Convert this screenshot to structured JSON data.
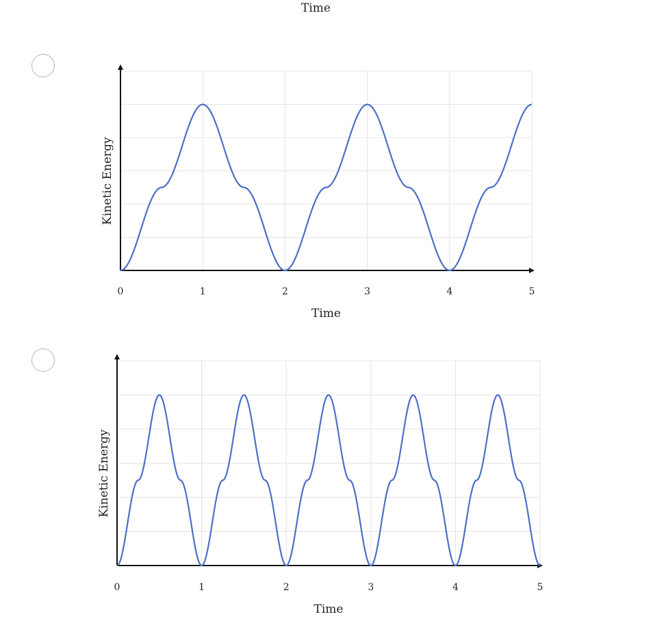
{
  "top_label": "Time",
  "options": [
    {
      "chart_data": {
        "type": "line",
        "xlabel": "Time",
        "ylabel": "Kinetic Energy",
        "xlim": [
          0,
          5
        ],
        "ylim": [
          0,
          1.2
        ],
        "x_ticks": [
          "0",
          "1",
          "2",
          "3",
          "4",
          "5"
        ],
        "grid": true,
        "series": [
          {
            "x": [
              0,
              0.5,
              1,
              1.5,
              2,
              2.5,
              3,
              3.5,
              4,
              4.5,
              5
            ],
            "values": [
              0,
              0.5,
              1,
              0.5,
              0,
              0.5,
              1,
              0.5,
              0,
              0.5,
              1
            ],
            "color": "#4a6fc7"
          }
        ]
      }
    },
    {
      "chart_data": {
        "type": "line",
        "xlabel": "Time",
        "ylabel": "Kinetic Energy",
        "xlim": [
          0,
          5
        ],
        "ylim": [
          0,
          1.2
        ],
        "x_ticks": [
          "0",
          "1",
          "2",
          "3",
          "4",
          "5"
        ],
        "grid": true,
        "series": [
          {
            "x": [
              0,
              0.25,
              0.5,
              0.75,
              1,
              1.25,
              1.5,
              1.75,
              2,
              2.25,
              2.5,
              2.75,
              3,
              3.25,
              3.5,
              3.75,
              4,
              4.25,
              4.5,
              4.75,
              5
            ],
            "values": [
              0,
              0.5,
              1,
              0.5,
              0,
              0.5,
              1,
              0.5,
              0,
              0.5,
              1,
              0.5,
              0,
              0.5,
              1,
              0.5,
              0,
              0.5,
              1,
              0.5,
              0
            ],
            "color": "#4a6fc7"
          }
        ]
      }
    }
  ]
}
